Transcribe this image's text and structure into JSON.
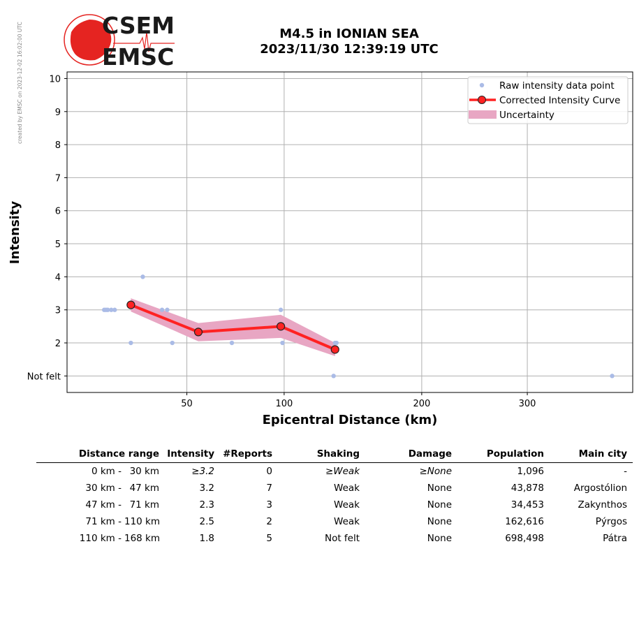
{
  "watermark": "created by EMSC on 2023-12-02 16:02:00 UTC",
  "logo": {
    "line1": "CSEM",
    "line2": "EMSC"
  },
  "title": {
    "line1": "M4.5 in IONIAN SEA",
    "line2": "2023/11/30 12:39:19 UTC"
  },
  "colors": {
    "raw": "#aabbe6",
    "curve": "#ff2222",
    "uncertainty": "#e8a6c3",
    "grid": "#b0b0b0",
    "logo_red": "#e52421"
  },
  "chart_data": {
    "type": "scatter",
    "xlabel": "Epicentral Distance (km)",
    "ylabel": "Intensity",
    "x_scale": "sqrt",
    "xlim": [
      12,
      420
    ],
    "ylim": [
      0.5,
      10.2
    ],
    "grid": true,
    "legend_position": "top-right",
    "x_ticks": [
      50,
      100,
      200,
      300
    ],
    "x_tick_labels": [
      "50",
      "100",
      "200",
      "300"
    ],
    "y_ticks": [
      1,
      2,
      3,
      4,
      5,
      6,
      7,
      8,
      9,
      10
    ],
    "y_tick_labels": [
      "Not felt",
      "2",
      "3",
      "4",
      "5",
      "6",
      "7",
      "8",
      "9",
      "10"
    ],
    "legend": {
      "raw": "Raw intensity data point",
      "curve": "Corrected Intensity Curve",
      "uncertainty": "Uncertainty"
    },
    "raw_points": [
      {
        "x": 21,
        "y": 3
      },
      {
        "x": 21.5,
        "y": 3
      },
      {
        "x": 22,
        "y": 3
      },
      {
        "x": 23,
        "y": 3
      },
      {
        "x": 24,
        "y": 3
      },
      {
        "x": 29,
        "y": 2
      },
      {
        "x": 33,
        "y": 4
      },
      {
        "x": 40,
        "y": 3
      },
      {
        "x": 42,
        "y": 3
      },
      {
        "x": 44,
        "y": 2
      },
      {
        "x": 71,
        "y": 2
      },
      {
        "x": 98,
        "y": 3
      },
      {
        "x": 99,
        "y": 2
      },
      {
        "x": 132,
        "y": 1
      },
      {
        "x": 133,
        "y": 2
      },
      {
        "x": 134,
        "y": 2
      },
      {
        "x": 395,
        "y": 1
      }
    ],
    "curve": [
      {
        "x": 29,
        "y": 3.15
      },
      {
        "x": 55,
        "y": 2.33
      },
      {
        "x": 98,
        "y": 2.5
      },
      {
        "x": 133,
        "y": 1.8
      }
    ],
    "uncertainty": [
      {
        "x": 29,
        "lo": 2.95,
        "hi": 3.35
      },
      {
        "x": 55,
        "lo": 2.05,
        "hi": 2.6
      },
      {
        "x": 98,
        "lo": 2.15,
        "hi": 2.85
      },
      {
        "x": 133,
        "lo": 1.6,
        "hi": 2.0
      }
    ]
  },
  "table": {
    "headers": [
      "Distance range",
      "Intensity",
      "#Reports",
      "Shaking",
      "Damage",
      "Population",
      "Main city"
    ],
    "rows": [
      {
        "from": "0 km -",
        "to": "30 km",
        "intensity": "≥3.2",
        "reports": "0",
        "shaking": "≥Weak",
        "damage": "≥None",
        "population": "1,096",
        "city": "-",
        "italic": true
      },
      {
        "from": "30 km -",
        "to": "47 km",
        "intensity": "3.2",
        "reports": "7",
        "shaking": "Weak",
        "damage": "None",
        "population": "43,878",
        "city": "Argostólion",
        "italic": false
      },
      {
        "from": "47 km -",
        "to": "71 km",
        "intensity": "2.3",
        "reports": "3",
        "shaking": "Weak",
        "damage": "None",
        "population": "34,453",
        "city": "Zakynthos",
        "italic": false
      },
      {
        "from": "71 km -",
        "to": "110 km",
        "intensity": "2.5",
        "reports": "2",
        "shaking": "Weak",
        "damage": "None",
        "population": "162,616",
        "city": "Pýrgos",
        "italic": false
      },
      {
        "from": "110 km -",
        "to": "168 km",
        "intensity": "1.8",
        "reports": "5",
        "shaking": "Not felt",
        "damage": "None",
        "population": "698,498",
        "city": "Pátra",
        "italic": false
      }
    ]
  }
}
